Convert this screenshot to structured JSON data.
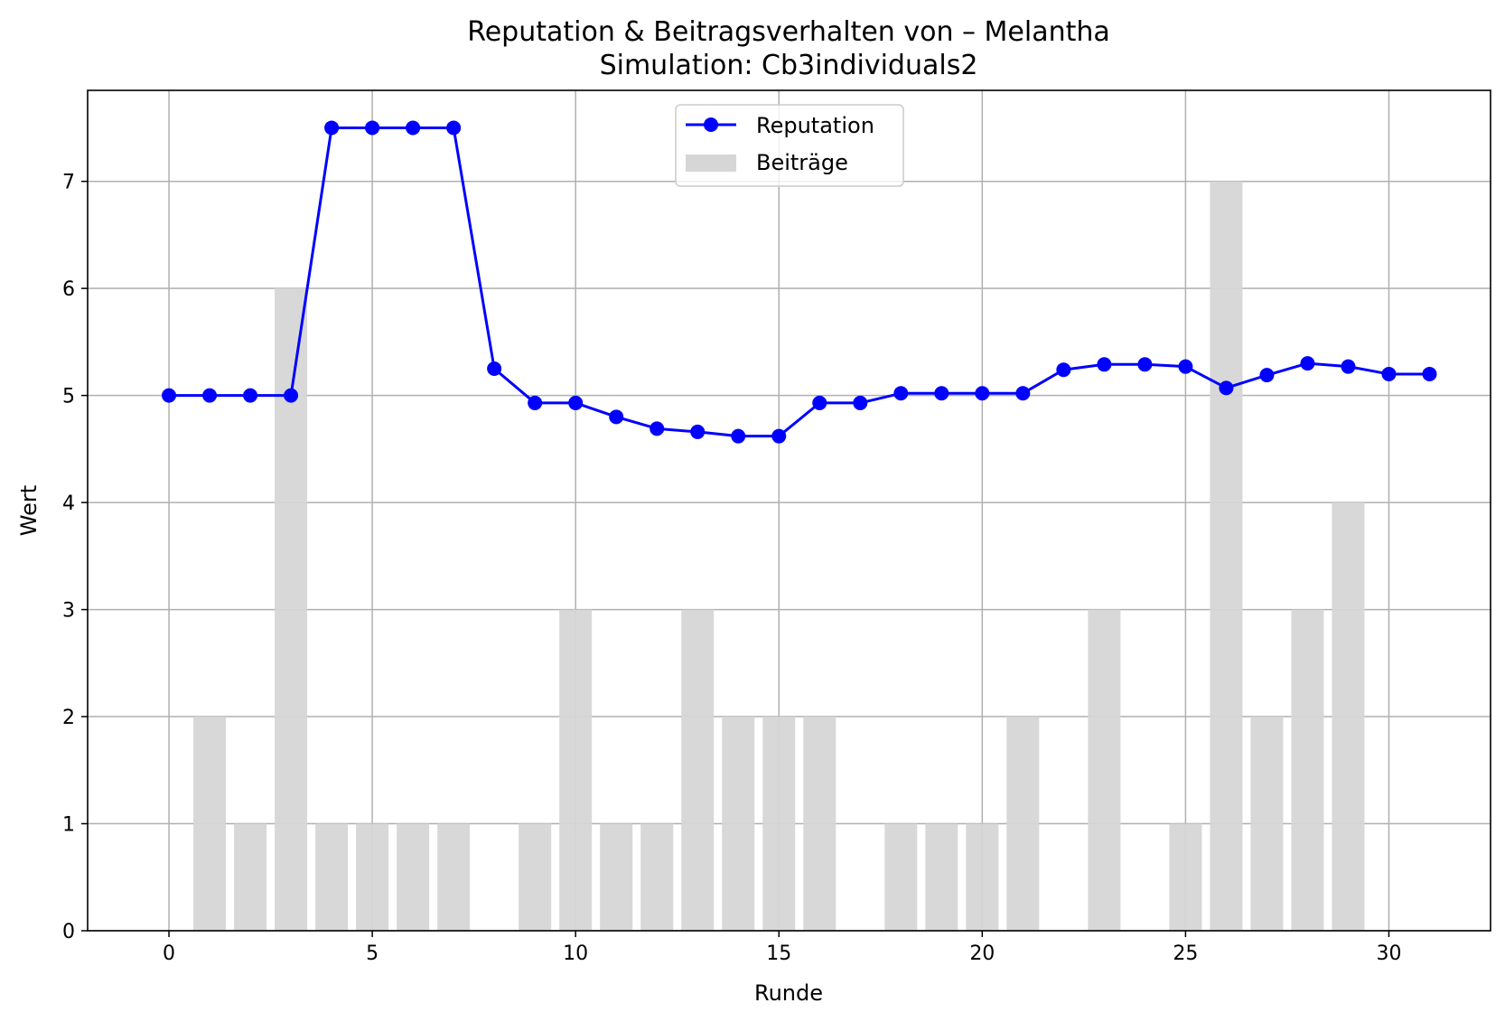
{
  "chart_data": {
    "type": "bar",
    "title": "Reputation & Beitragsverhalten von – Melantha",
    "subtitle": "Simulation: Cb3individuals2",
    "xlabel": "Runde",
    "ylabel": "Wert",
    "xlim": [
      -2,
      32.5
    ],
    "ylim": [
      0,
      7.85
    ],
    "xticks": [
      0,
      5,
      10,
      15,
      20,
      25,
      30
    ],
    "yticks": [
      0,
      1,
      2,
      3,
      4,
      5,
      6,
      7
    ],
    "grid": true,
    "legend_position": "top-center",
    "series": [
      {
        "name": "Reputation",
        "type": "line",
        "marker": "circle",
        "color": "#0000ff",
        "x": [
          0,
          1,
          2,
          3,
          4,
          5,
          6,
          7,
          8,
          9,
          10,
          11,
          12,
          13,
          14,
          15,
          16,
          17,
          18,
          19,
          20,
          21,
          22,
          23,
          24,
          25,
          26,
          27,
          28,
          29,
          30,
          31
        ],
        "values": [
          5.0,
          5.0,
          5.0,
          5.0,
          7.5,
          7.5,
          7.5,
          7.5,
          5.25,
          4.93,
          4.93,
          4.8,
          4.69,
          4.66,
          4.62,
          4.62,
          4.93,
          4.93,
          5.02,
          5.02,
          5.02,
          5.02,
          5.24,
          5.29,
          5.29,
          5.27,
          5.07,
          5.19,
          5.3,
          5.27,
          5.2,
          5.2
        ]
      },
      {
        "name": "Beiträge",
        "type": "bar",
        "color": "#d6d6d6",
        "x": [
          0,
          1,
          2,
          3,
          4,
          5,
          6,
          7,
          8,
          9,
          10,
          11,
          12,
          13,
          14,
          15,
          16,
          17,
          18,
          19,
          20,
          21,
          22,
          23,
          24,
          25,
          26,
          27,
          28,
          29,
          30,
          31
        ],
        "values": [
          0,
          2,
          1,
          6,
          1,
          1,
          1,
          1,
          0,
          1,
          3,
          1,
          1,
          3,
          2,
          2,
          2,
          0,
          1,
          1,
          1,
          2,
          0,
          3,
          0,
          1,
          7,
          2,
          3,
          4,
          0,
          0
        ]
      }
    ]
  }
}
